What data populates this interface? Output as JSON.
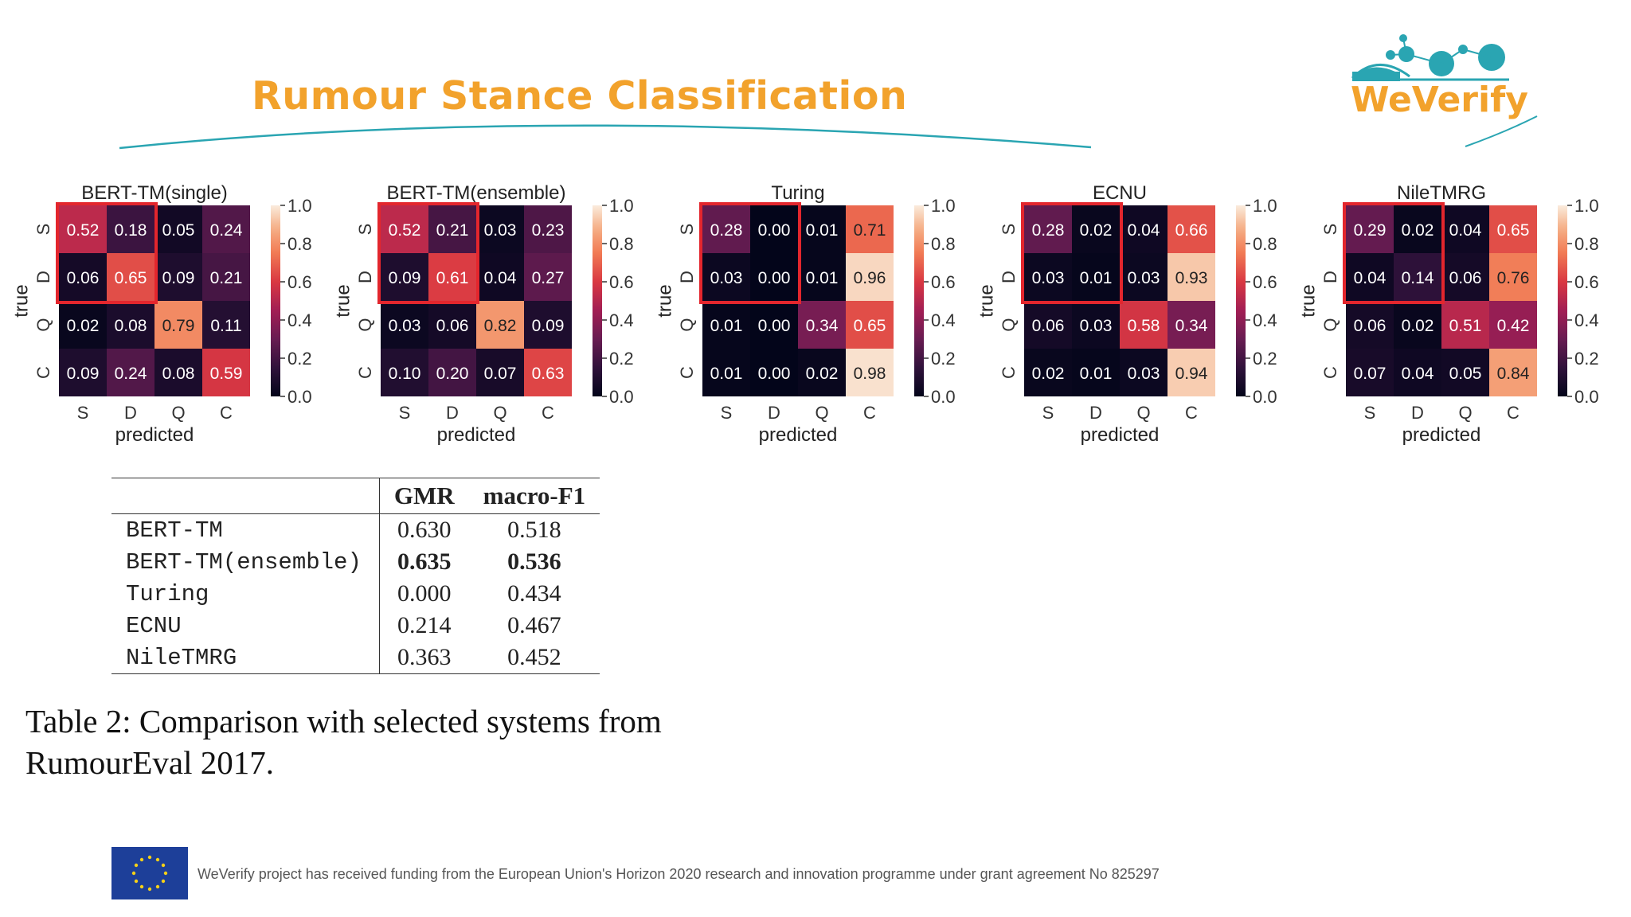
{
  "slide": {
    "title": "Rumour Stance Classification",
    "logo_text": "WeVerify",
    "footer": "WeVerify project has received funding from the European Union's Horizon 2020 research and innovation programme under grant agreement No 825297"
  },
  "chart_data": [
    {
      "type": "heatmap",
      "title": "BERT-TM(single)",
      "xlabel": "predicted",
      "ylabel": "true",
      "x_categories": [
        "S",
        "D",
        "Q",
        "C"
      ],
      "y_categories": [
        "S",
        "D",
        "Q",
        "C"
      ],
      "values": [
        [
          0.52,
          0.18,
          0.05,
          0.24
        ],
        [
          0.06,
          0.65,
          0.09,
          0.21
        ],
        [
          0.02,
          0.08,
          0.79,
          0.11
        ],
        [
          0.09,
          0.24,
          0.08,
          0.59
        ]
      ],
      "colorbar_ticks": [
        "0.0",
        "0.2",
        "0.4",
        "0.6",
        "0.8",
        "1.0"
      ],
      "vrange": [
        0.0,
        1.0
      ],
      "highlight": "S/D block"
    },
    {
      "type": "heatmap",
      "title": "BERT-TM(ensemble)",
      "xlabel": "predicted",
      "ylabel": "true",
      "x_categories": [
        "S",
        "D",
        "Q",
        "C"
      ],
      "y_categories": [
        "S",
        "D",
        "Q",
        "C"
      ],
      "values": [
        [
          0.52,
          0.21,
          0.03,
          0.23
        ],
        [
          0.09,
          0.61,
          0.04,
          0.27
        ],
        [
          0.03,
          0.06,
          0.82,
          0.09
        ],
        [
          0.1,
          0.2,
          0.07,
          0.63
        ]
      ],
      "colorbar_ticks": [
        "0.0",
        "0.2",
        "0.4",
        "0.6",
        "0.8",
        "1.0"
      ],
      "vrange": [
        0.0,
        1.0
      ],
      "highlight": "S/D block"
    },
    {
      "type": "heatmap",
      "title": "Turing",
      "xlabel": "predicted",
      "ylabel": "true",
      "x_categories": [
        "S",
        "D",
        "Q",
        "C"
      ],
      "y_categories": [
        "S",
        "D",
        "Q",
        "C"
      ],
      "values": [
        [
          0.28,
          0.0,
          0.01,
          0.71
        ],
        [
          0.03,
          0.0,
          0.01,
          0.96
        ],
        [
          0.01,
          0.0,
          0.34,
          0.65
        ],
        [
          0.01,
          0.0,
          0.02,
          0.98
        ]
      ],
      "colorbar_ticks": [
        "0.0",
        "0.2",
        "0.4",
        "0.6",
        "0.8",
        "1.0"
      ],
      "vrange": [
        0.0,
        1.0
      ],
      "highlight": "S/D block"
    },
    {
      "type": "heatmap",
      "title": "ECNU",
      "xlabel": "predicted",
      "ylabel": "true",
      "x_categories": [
        "S",
        "D",
        "Q",
        "C"
      ],
      "y_categories": [
        "S",
        "D",
        "Q",
        "C"
      ],
      "values": [
        [
          0.28,
          0.02,
          0.04,
          0.66
        ],
        [
          0.03,
          0.01,
          0.03,
          0.93
        ],
        [
          0.06,
          0.03,
          0.58,
          0.34
        ],
        [
          0.02,
          0.01,
          0.03,
          0.94
        ]
      ],
      "colorbar_ticks": [
        "0.0",
        "0.2",
        "0.4",
        "0.6",
        "0.8",
        "1.0"
      ],
      "vrange": [
        0.0,
        1.0
      ],
      "highlight": "S/D block"
    },
    {
      "type": "heatmap",
      "title": "NileTMRG",
      "xlabel": "predicted",
      "ylabel": "true",
      "x_categories": [
        "S",
        "D",
        "Q",
        "C"
      ],
      "y_categories": [
        "S",
        "D",
        "Q",
        "C"
      ],
      "values": [
        [
          0.29,
          0.02,
          0.04,
          0.65
        ],
        [
          0.04,
          0.14,
          0.06,
          0.76
        ],
        [
          0.06,
          0.02,
          0.51,
          0.42
        ],
        [
          0.07,
          0.04,
          0.05,
          0.84
        ]
      ],
      "colorbar_ticks": [
        "0.0",
        "0.2",
        "0.4",
        "0.6",
        "0.8",
        "1.0"
      ],
      "vrange": [
        0.0,
        1.0
      ],
      "highlight": "S/D block"
    }
  ],
  "results_table": {
    "headers": [
      "",
      "GMR",
      "macro-F1"
    ],
    "rows": [
      {
        "system": "BERT-TM",
        "gmr": "0.630",
        "f1": "0.518",
        "bold": false
      },
      {
        "system": "BERT-TM(ensemble)",
        "gmr": "0.635",
        "f1": "0.536",
        "bold": true
      },
      {
        "system": "Turing",
        "gmr": "0.000",
        "f1": "0.434",
        "bold": false
      },
      {
        "system": "ECNU",
        "gmr": "0.214",
        "f1": "0.467",
        "bold": false
      },
      {
        "system": "NileTMRG",
        "gmr": "0.363",
        "f1": "0.452",
        "bold": false
      }
    ],
    "caption": "Table 2:  Comparison with selected systems from RumourEval 2017."
  },
  "colors": {
    "title": "#f2a22c",
    "teal": "#2aa5b2",
    "highlight_box": "#e3262d"
  }
}
